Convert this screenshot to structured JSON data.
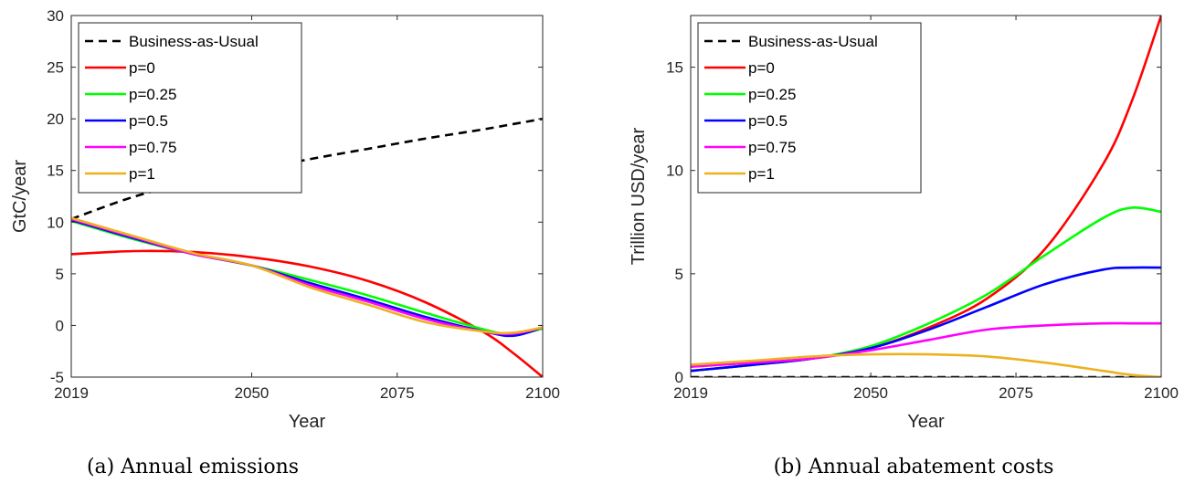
{
  "chart_data": [
    {
      "type": "line",
      "caption": "(a) Annual emissions",
      "xlabel": "Year",
      "ylabel": "GtC/year",
      "xlim": [
        2019,
        2100
      ],
      "ylim": [
        -5,
        30
      ],
      "xticks": [
        2019,
        2050,
        2075,
        2100
      ],
      "yticks": [
        -5,
        0,
        5,
        10,
        15,
        20,
        25,
        30
      ],
      "grid": false,
      "legend_position": "top-left",
      "x": [
        2019,
        2030,
        2040,
        2050,
        2060,
        2070,
        2080,
        2090,
        2095,
        2100
      ],
      "series": [
        {
          "name": "Business-as-Usual",
          "color": "#000000",
          "dash": true,
          "values": [
            10.3,
            12.5,
            13.9,
            15.0,
            16.1,
            17.1,
            18.1,
            19.0,
            19.5,
            20.0
          ]
        },
        {
          "name": "p=0",
          "color": "#ff0000",
          "values": [
            6.9,
            7.2,
            7.1,
            6.6,
            5.7,
            4.3,
            2.2,
            -0.7,
            -2.7,
            -5.0
          ]
        },
        {
          "name": "p=0.25",
          "color": "#00ff00",
          "values": [
            10.1,
            8.3,
            6.9,
            5.8,
            4.4,
            2.9,
            1.2,
            -0.4,
            -0.9,
            -0.3
          ]
        },
        {
          "name": "p=0.5",
          "color": "#0000ff",
          "values": [
            10.2,
            8.4,
            6.9,
            5.8,
            4.1,
            2.5,
            0.8,
            -0.6,
            -1.0,
            -0.2
          ]
        },
        {
          "name": "p=0.75",
          "color": "#ff00ff",
          "values": [
            10.3,
            8.5,
            6.9,
            5.8,
            3.9,
            2.3,
            0.6,
            -0.6,
            -0.8,
            -0.2
          ]
        },
        {
          "name": "p=1",
          "color": "#edb120",
          "values": [
            10.4,
            8.6,
            7.0,
            5.8,
            3.7,
            2.0,
            0.3,
            -0.6,
            -0.7,
            -0.2
          ]
        }
      ]
    },
    {
      "type": "line",
      "caption": "(b) Annual abatement costs",
      "xlabel": "Year",
      "ylabel": "Trillion USD/year",
      "xlim": [
        2019,
        2100
      ],
      "ylim": [
        0,
        17.5
      ],
      "xticks": [
        2019,
        2050,
        2075,
        2100
      ],
      "yticks": [
        0,
        5,
        10,
        15
      ],
      "grid": false,
      "legend_position": "top-left",
      "x": [
        2019,
        2030,
        2040,
        2050,
        2060,
        2070,
        2080,
        2090,
        2095,
        2100
      ],
      "series": [
        {
          "name": "Business-as-Usual",
          "color": "#000000",
          "dash": true,
          "values": [
            0,
            0,
            0,
            0,
            0,
            0,
            0,
            0,
            0,
            0
          ]
        },
        {
          "name": "p=0",
          "color": "#ff0000",
          "values": [
            0.3,
            0.6,
            0.9,
            1.4,
            2.4,
            3.8,
            6.2,
            10.3,
            13.4,
            17.5
          ]
        },
        {
          "name": "p=0.25",
          "color": "#00ff00",
          "values": [
            0.3,
            0.6,
            0.9,
            1.5,
            2.6,
            4.0,
            5.9,
            7.7,
            8.2,
            8.0
          ]
        },
        {
          "name": "p=0.5",
          "color": "#0000ff",
          "values": [
            0.3,
            0.6,
            0.9,
            1.4,
            2.3,
            3.4,
            4.5,
            5.2,
            5.3,
            5.3
          ]
        },
        {
          "name": "p=0.75",
          "color": "#ff00ff",
          "values": [
            0.5,
            0.7,
            0.9,
            1.3,
            1.8,
            2.3,
            2.5,
            2.6,
            2.6,
            2.6
          ]
        },
        {
          "name": "p=1",
          "color": "#edb120",
          "values": [
            0.6,
            0.8,
            1.0,
            1.1,
            1.1,
            1.0,
            0.7,
            0.3,
            0.1,
            0.0
          ]
        }
      ]
    }
  ]
}
